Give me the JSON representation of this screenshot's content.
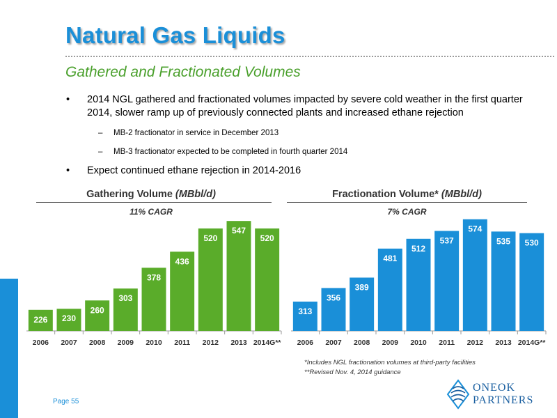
{
  "header": {
    "title": "Natural Gas Liquids",
    "subtitle": "Gathered and Fractionated Volumes"
  },
  "bullets": [
    {
      "text": "2014 NGL gathered and fractionated volumes impacted by severe cold weather in the first quarter 2014, slower ramp up of previously connected plants and increased ethane rejection",
      "subs": [
        "MB-2 fractionator in service in December 2013",
        "MB-3 fractionator expected to be completed in fourth quarter 2014"
      ]
    },
    {
      "text": "Expect continued ethane rejection in 2014-2016",
      "subs": []
    }
  ],
  "bullet_glyph": "•",
  "sub_glyph": "–",
  "chart_data": [
    {
      "type": "bar",
      "title": "Gathering Volume",
      "title_unit": "(MBbl/d)",
      "annotation": "11% CAGR",
      "categories": [
        "2006",
        "2007",
        "2008",
        "2009",
        "2010",
        "2011",
        "2012",
        "2013",
        "2014G**"
      ],
      "values": [
        226,
        230,
        260,
        303,
        378,
        436,
        520,
        547,
        520
      ],
      "color": "#5aac2a",
      "data_labels": true,
      "ylim": [
        150,
        560
      ]
    },
    {
      "type": "bar",
      "title": "Fractionation Volume*",
      "title_unit": "(MBbl/d)",
      "annotation": "7% CAGR",
      "categories": [
        "2006",
        "2007",
        "2008",
        "2009",
        "2010",
        "2011",
        "2012",
        "2013",
        "2014G**"
      ],
      "values": [
        313,
        356,
        389,
        481,
        512,
        537,
        574,
        535,
        530
      ],
      "color": "#1a8fd8",
      "data_labels": true,
      "ylim": [
        220,
        580
      ]
    }
  ],
  "footnotes": [
    "*Includes NGL fractionation volumes at third-party facilities",
    "**Revised Nov. 4, 2014 guidance"
  ],
  "footer": {
    "page": "Page 55"
  },
  "logo": {
    "line1": "ONEOK",
    "line2": "PARTNERS"
  },
  "colors": {
    "brand_blue": "#1a8fd8",
    "accent_green": "#4aa02c",
    "bar_green": "#5aac2a",
    "bar_blue": "#1a8fd8"
  }
}
